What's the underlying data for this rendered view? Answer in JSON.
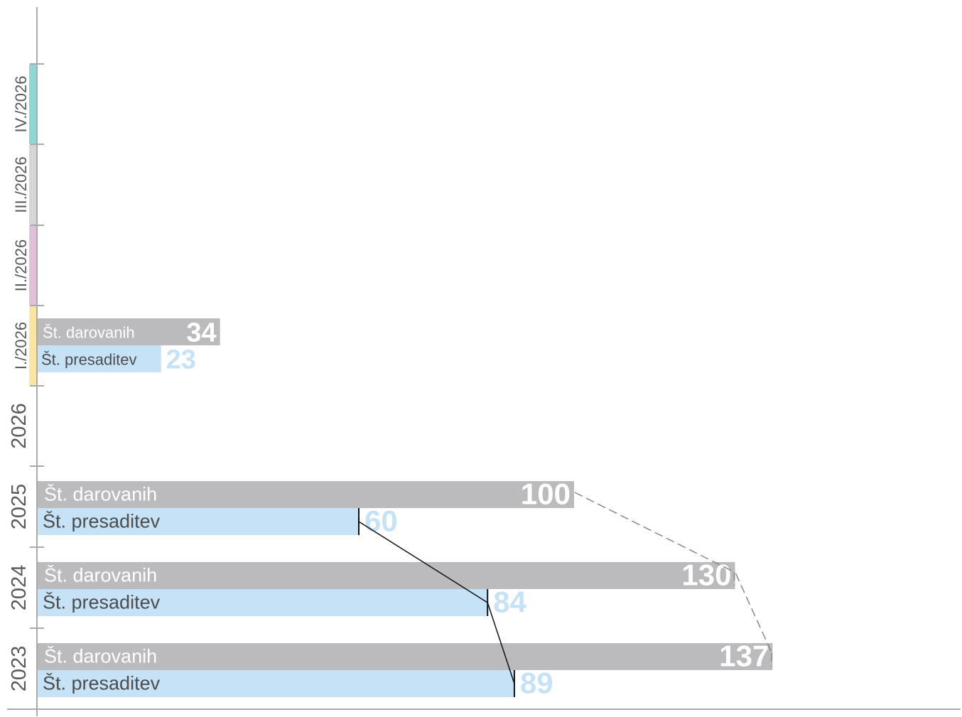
{
  "chart_data": {
    "type": "bar",
    "orientation": "horizontal",
    "categories": [
      "2023",
      "2024",
      "2025",
      "2026",
      "I./2026",
      "II./2026",
      "III./2026",
      "IV./2026"
    ],
    "series": [
      {
        "name": "Št. darovanih",
        "color": "#bbbbbe",
        "values": [
          137,
          130,
          100,
          null,
          34,
          null,
          null,
          null
        ]
      },
      {
        "name": "Št. presaditev",
        "color": "#c6e2f6",
        "values": [
          89,
          84,
          60,
          null,
          23,
          null,
          null,
          null
        ]
      }
    ],
    "quarter_colors": [
      "#f9e6a3",
      "#dfc2d8",
      "#d6d6d6",
      "#8fd6d6"
    ],
    "trend_lines": true,
    "grid": false,
    "title": "",
    "xlabel": "",
    "ylabel": ""
  }
}
